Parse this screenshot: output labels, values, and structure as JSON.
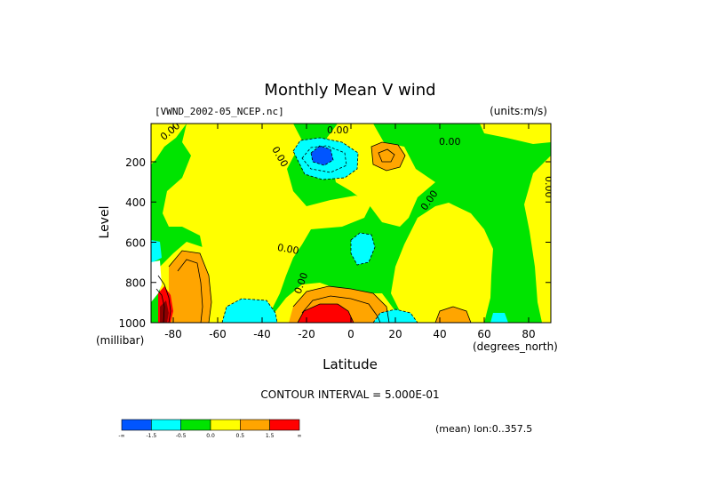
{
  "chart_data": {
    "type": "contour",
    "title": "Monthly Mean V wind",
    "dataset": "[VWND_2002-05_NCEP.nc]",
    "units": "(units:m/s)",
    "xlabel": "Latitude",
    "ylabel": "Level",
    "x_units": "(degrees_north)",
    "y_units": "(millibar)",
    "xlim": [
      -90,
      90
    ],
    "ylim": [
      1000,
      10
    ],
    "x_ticks": [
      -80,
      -60,
      -40,
      -20,
      0,
      20,
      40,
      60,
      80
    ],
    "x_tick_labels": [
      "-80",
      "-60",
      "-40",
      "-20",
      "0",
      "20",
      "40",
      "60",
      "80"
    ],
    "y_ticks": [
      200,
      400,
      600,
      800,
      1000
    ],
    "y_tick_labels": [
      "200",
      "400",
      "600",
      "800",
      "1000"
    ],
    "contour_interval_text": "CONTOUR INTERVAL = 5.000E-01",
    "mean_note": "(mean) lon:0..357.5",
    "contour_labels": [
      "0.00",
      "0.00",
      "0.00",
      "0.00",
      "0.00",
      "0.00",
      "0.00"
    ],
    "colorbar": {
      "colors": [
        "#0055ff",
        "#00ffff",
        "#00e400",
        "#ffff00",
        "#ffa500",
        "#ff0000"
      ],
      "labels": [
        "-∞",
        "-1.5",
        "-0.5",
        "0.0",
        "0.5",
        "1.5",
        "∞"
      ]
    },
    "regions": [
      {
        "kind": "band",
        "level": "positive",
        "lat_range": [
          -90,
          90
        ],
        "pressure_range": [
          10,
          1000
        ]
      },
      {
        "kind": "max",
        "value_sign": "negative",
        "lat": -18,
        "pressure": 165
      },
      {
        "kind": "max",
        "value_sign": "positive",
        "lat": 15,
        "pressure": 165
      },
      {
        "kind": "max",
        "value_sign": "negative",
        "lat": 5,
        "pressure": 640
      },
      {
        "kind": "max",
        "value_sign": "positive",
        "lat": -78,
        "pressure": 720
      },
      {
        "kind": "max",
        "value_sign": "strong-positive",
        "lat": -15,
        "pressure": 960
      },
      {
        "kind": "max",
        "value_sign": "negative",
        "lat": -50,
        "pressure": 960
      },
      {
        "kind": "max",
        "value_sign": "negative",
        "lat": 15,
        "pressure": 975
      },
      {
        "kind": "max",
        "value_sign": "positive",
        "lat": 46,
        "pressure": 975
      }
    ],
    "colors": {
      "strong_negative": "#0055ff",
      "negative": "#00ffff",
      "near_zero_neg": "#00e400",
      "near_zero_pos": "#ffff00",
      "positive": "#ffa500",
      "strong_positive": "#ff0000",
      "deep_red": "#8b0000"
    }
  }
}
